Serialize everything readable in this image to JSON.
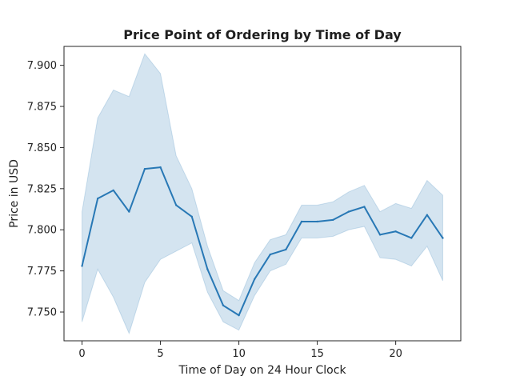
{
  "chart_data": {
    "type": "line",
    "title": "Price Point of Ordering by Time of Day",
    "xlabel": "Time of Day on 24 Hour Clock",
    "ylabel": "Price in USD",
    "xlim": [
      -1.15,
      24.15
    ],
    "ylim": [
      7.7325,
      7.9115
    ],
    "xticks": [
      0,
      5,
      10,
      15,
      20
    ],
    "xtick_labels": [
      "0",
      "5",
      "10",
      "15",
      "20"
    ],
    "yticks": [
      7.75,
      7.775,
      7.8,
      7.825,
      7.85,
      7.875,
      7.9
    ],
    "ytick_labels": [
      "7.750",
      "7.775",
      "7.800",
      "7.825",
      "7.850",
      "7.875",
      "7.900"
    ],
    "grid": false,
    "series": [
      {
        "x": [
          0,
          1,
          2,
          3,
          4,
          5,
          6,
          7,
          8,
          9,
          10,
          11,
          12,
          13,
          14,
          15,
          16,
          17,
          18,
          19,
          20,
          21,
          22,
          23
        ],
        "values": [
          7.778,
          7.819,
          7.824,
          7.811,
          7.837,
          7.838,
          7.815,
          7.808,
          7.776,
          7.754,
          7.748,
          7.77,
          7.785,
          7.788,
          7.805,
          7.805,
          7.806,
          7.811,
          7.814,
          7.797,
          7.799,
          7.795,
          7.809,
          7.795
        ],
        "ci_lower": [
          7.744,
          7.776,
          7.759,
          7.737,
          7.768,
          7.782,
          7.787,
          7.792,
          7.762,
          7.744,
          7.739,
          7.76,
          7.775,
          7.779,
          7.795,
          7.795,
          7.796,
          7.8,
          7.802,
          7.783,
          7.782,
          7.778,
          7.79,
          7.769
        ],
        "ci_upper": [
          7.811,
          7.868,
          7.885,
          7.881,
          7.907,
          7.895,
          7.845,
          7.825,
          7.79,
          7.763,
          7.757,
          7.78,
          7.794,
          7.797,
          7.815,
          7.815,
          7.817,
          7.823,
          7.827,
          7.811,
          7.816,
          7.813,
          7.83,
          7.821
        ]
      }
    ],
    "colors": {
      "line": "#2878b5",
      "band": "#2878b5",
      "axis": "#262626",
      "text": "#222222"
    }
  }
}
